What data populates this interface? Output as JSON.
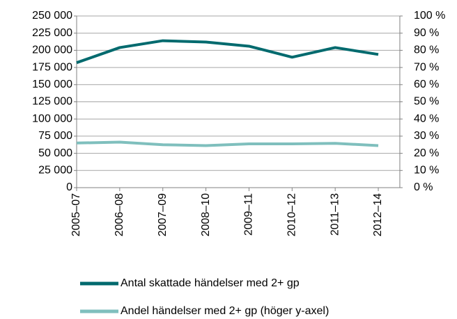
{
  "chart_data": {
    "type": "line",
    "categories": [
      "2005–07",
      "2006–08",
      "2007–09",
      "2008–10",
      "2009–11",
      "2010–12",
      "2011–13",
      "2012–14"
    ],
    "series": [
      {
        "name": "Antal skattade händelser med 2+ gp",
        "color": "#006a6e",
        "values": [
          182000,
          204000,
          214000,
          212000,
          206000,
          190000,
          204000,
          194000
        ]
      },
      {
        "name": "Andel händelser med 2+ gp (höger y-axel)",
        "color": "#7fbfbd",
        "axis": "y2",
        "values": [
          26,
          26.5,
          25,
          24.5,
          25.5,
          25.5,
          25.8,
          24.5
        ]
      }
    ],
    "ylim": [
      0,
      250000
    ],
    "yticks": [
      0,
      {
        "value": 25000,
        "label": "25 000"
      },
      {
        "value": 50000,
        "label": "50 000"
      },
      {
        "value": 75000,
        "label": "75 000"
      },
      {
        "value": 100000,
        "label": "100 000"
      },
      {
        "value": 125000,
        "label": "125 000"
      },
      {
        "value": 150000,
        "label": "150 000"
      },
      {
        "value": 175000,
        "label": "175 000"
      },
      {
        "value": 200000,
        "label": "200 000"
      },
      {
        "value": 225000,
        "label": "225 000"
      },
      {
        "value": 250000,
        "label": "250 000"
      }
    ],
    "y2lim": [
      0,
      100
    ],
    "y2ticks": [
      {
        "value": 0,
        "label": "0 %"
      },
      {
        "value": 10,
        "label": "10 %"
      },
      {
        "value": 20,
        "label": "20 %"
      },
      {
        "value": 30,
        "label": "30 %"
      },
      {
        "value": 40,
        "label": "40 %"
      },
      {
        "value": 50,
        "label": "50 %"
      },
      {
        "value": 60,
        "label": "60 %"
      },
      {
        "value": 70,
        "label": "70 %"
      },
      {
        "value": 80,
        "label": "80 %"
      },
      {
        "value": 90,
        "label": "90 %"
      },
      {
        "value": 100,
        "label": "100 %"
      }
    ],
    "grid": true
  }
}
